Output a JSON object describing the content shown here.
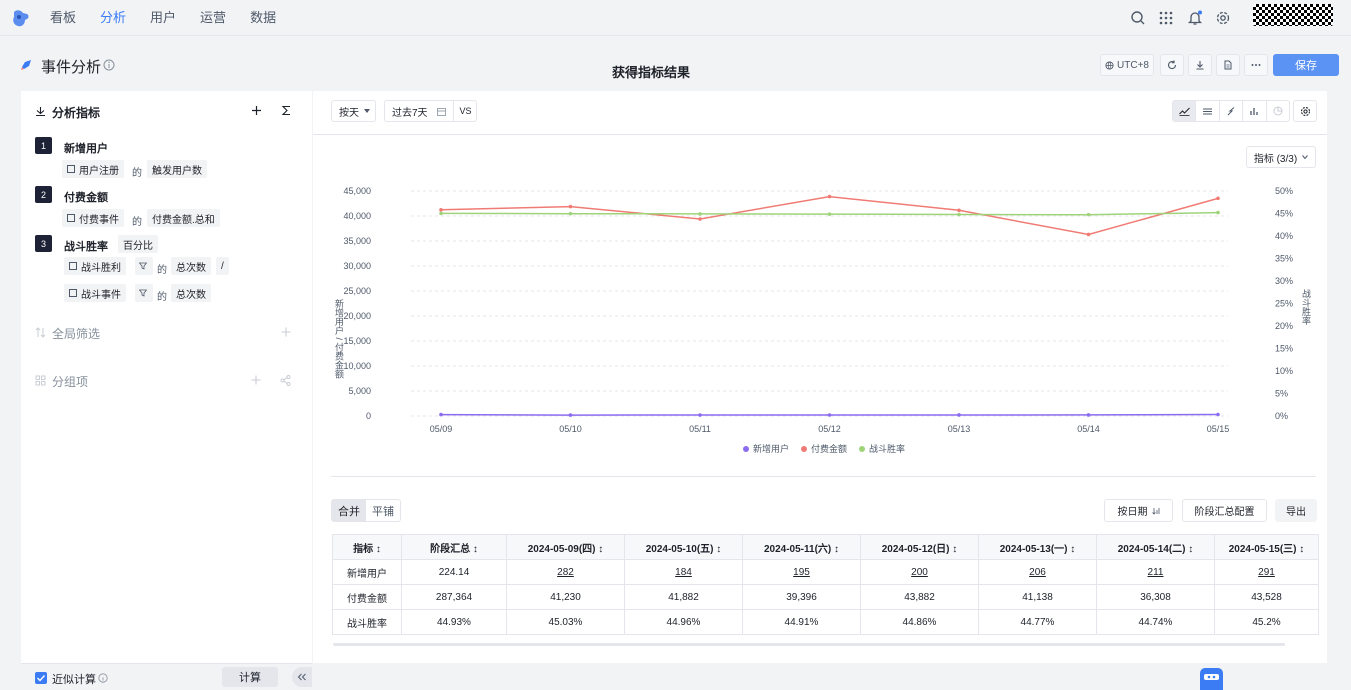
{
  "nav": {
    "items": [
      "看板",
      "分析",
      "用户",
      "运营",
      "数据"
    ],
    "active": 1
  },
  "page": {
    "title": "事件分析",
    "center_title": "获得指标结果",
    "timezone": "UTC+8",
    "save": "保存"
  },
  "panel": {
    "heading": "分析指标",
    "metrics": [
      {
        "no": "1",
        "name": "新增用户",
        "event": "用户注册",
        "of": "的",
        "measure": "触发用户数"
      },
      {
        "no": "2",
        "name": "付费金额",
        "event": "付费事件",
        "of": "的",
        "measure": "付费金额.总和"
      },
      {
        "no": "3",
        "name": "战斗胜率",
        "format": "百分比",
        "event": "战斗胜利",
        "of": "的",
        "measure": "总次数",
        "op": "/",
        "event2": "战斗事件",
        "of2": "的",
        "measure2": "总次数"
      }
    ],
    "global_filter": "全局筛选",
    "group": "分组项",
    "approx": "近似计算",
    "calc": "计算"
  },
  "controls": {
    "granularity": "按天",
    "range": "过去7天",
    "vs": "VS",
    "metric_picker": "指标 (3/3)"
  },
  "chart_data": {
    "type": "line",
    "categories": [
      "05/09",
      "05/10",
      "05/11",
      "05/12",
      "05/13",
      "05/14",
      "05/15"
    ],
    "ylabel_left": "新增用户 / 付费金额",
    "ylabel_right": "战斗胜率",
    "yticks_left": [
      "0",
      "5,000",
      "10,000",
      "15,000",
      "20,000",
      "25,000",
      "30,000",
      "35,000",
      "40,000",
      "45,000"
    ],
    "yticks_right": [
      "0%",
      "5%",
      "10%",
      "15%",
      "20%",
      "25%",
      "30%",
      "35%",
      "40%",
      "45%",
      "50%"
    ],
    "ylim_left": [
      0,
      45000
    ],
    "ylim_right": [
      0,
      50
    ],
    "series": [
      {
        "name": "新增用户",
        "axis": "left",
        "color": "#8b6cf0",
        "values": [
          282,
          184,
          195,
          200,
          206,
          211,
          291
        ]
      },
      {
        "name": "付费金额",
        "axis": "left",
        "color": "#f07b74",
        "values": [
          41230,
          41882,
          39396,
          43882,
          41138,
          36308,
          43528
        ]
      },
      {
        "name": "战斗胜率",
        "axis": "right",
        "color": "#9fd37a",
        "values": [
          45.03,
          44.96,
          44.91,
          44.86,
          44.77,
          44.74,
          45.2
        ]
      }
    ],
    "legend": "bottom"
  },
  "table": {
    "mode": [
      "合并",
      "平铺"
    ],
    "buttons": {
      "by_date": "按日期",
      "stage_cfg": "阶段汇总配置",
      "export": "导出"
    },
    "headers": [
      "指标",
      "阶段汇总",
      "2024-05-09(四)",
      "2024-05-10(五)",
      "2024-05-11(六)",
      "2024-05-12(日)",
      "2024-05-13(一)",
      "2024-05-14(二)",
      "2024-05-15(三)"
    ],
    "rows": [
      [
        "新增用户",
        "224.14",
        "282",
        "184",
        "195",
        "200",
        "206",
        "211",
        "291"
      ],
      [
        "付费金额",
        "287,364",
        "41,230",
        "41,882",
        "39,396",
        "43,882",
        "41,138",
        "36,308",
        "43,528"
      ],
      [
        "战斗胜率",
        "44.93%",
        "45.03%",
        "44.96%",
        "44.91%",
        "44.86%",
        "44.77%",
        "44.74%",
        "45.2%"
      ]
    ]
  }
}
